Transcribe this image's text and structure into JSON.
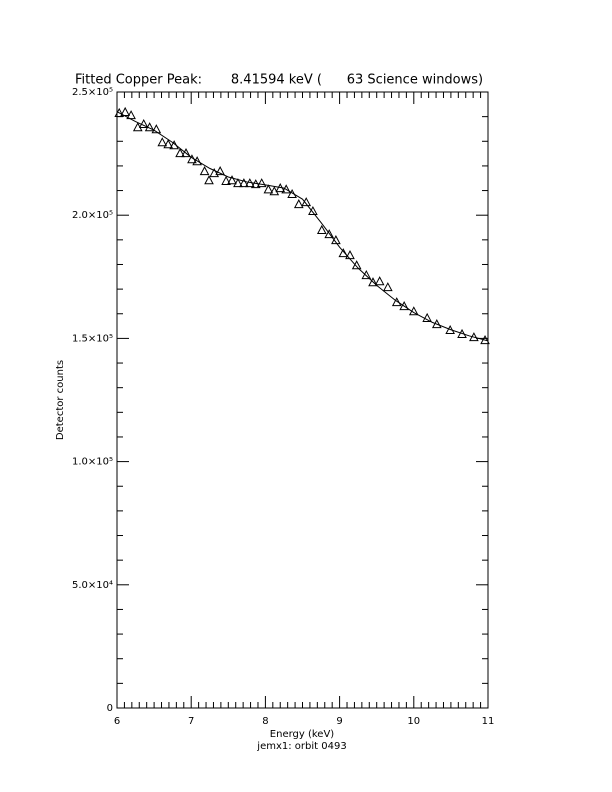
{
  "chart_data": {
    "type": "scatter",
    "title": "Fitted Copper Peak:       8.41594 keV (      63 Science windows)",
    "x_label": "Energy (keV)",
    "subtitle": "jemx1: orbit 0493",
    "y_label": "Detector counts",
    "xlim": [
      6,
      11
    ],
    "xticks": [
      6,
      7,
      8,
      9,
      10,
      11
    ],
    "ylim": [
      0,
      250000
    ],
    "yticks": [
      0,
      {
        "value": 50000,
        "label": "5.0×10⁴"
      },
      {
        "value": 100000,
        "label": "1.0×10⁵"
      },
      {
        "value": 150000,
        "label": "1.5×10⁵"
      },
      {
        "value": 200000,
        "label": "2.0×10⁵"
      },
      {
        "value": 250000,
        "label": "2.5×10⁵"
      }
    ],
    "series": [
      {
        "marker": "triangle",
        "color": "#000000",
        "x": [
          6.03,
          6.11,
          6.19,
          6.28,
          6.36,
          6.44,
          6.53,
          6.61,
          6.69,
          6.77,
          6.85,
          6.93,
          7.01,
          7.08,
          7.18,
          7.24,
          7.31,
          7.39,
          7.47,
          7.55,
          7.63,
          7.71,
          7.79,
          7.87,
          7.95,
          8.04,
          8.12,
          8.2,
          8.28,
          8.36,
          8.45,
          8.55,
          8.64,
          8.76,
          8.86,
          8.95,
          9.05,
          9.14,
          9.23,
          9.36,
          9.45,
          9.54,
          9.65,
          9.77,
          9.87,
          10.0,
          10.18,
          10.31,
          10.49,
          10.65,
          10.81,
          10.96
        ],
        "values": [
          241500,
          241900,
          240600,
          235700,
          237000,
          235700,
          234900,
          229600,
          228800,
          228400,
          225200,
          225200,
          222700,
          221900,
          217900,
          214200,
          217100,
          217900,
          213900,
          214200,
          213000,
          213000,
          213000,
          212600,
          213000,
          210500,
          209700,
          211000,
          210500,
          208600,
          204500,
          205300,
          201700,
          194000,
          192300,
          189900,
          184600,
          183800,
          179700,
          175700,
          172800,
          173200,
          170800,
          164700,
          163100,
          161000,
          158300,
          155800,
          153400,
          151800,
          150500,
          149300
        ]
      },
      {
        "marker": "line",
        "color": "#000000",
        "x": [
          6,
          6.25,
          6.5,
          6.75,
          7,
          7.25,
          7.5,
          7.75,
          8,
          8.25,
          8.5,
          8.75,
          9,
          9.25,
          9.5,
          9.75,
          10,
          10.25,
          10.5,
          10.75,
          11
        ],
        "values": [
          242000,
          238000,
          234500,
          229500,
          223500,
          219000,
          215500,
          213500,
          212300,
          211000,
          206500,
          197000,
          187000,
          178500,
          171500,
          165500,
          160500,
          156500,
          153500,
          151000,
          149000
        ]
      }
    ]
  }
}
